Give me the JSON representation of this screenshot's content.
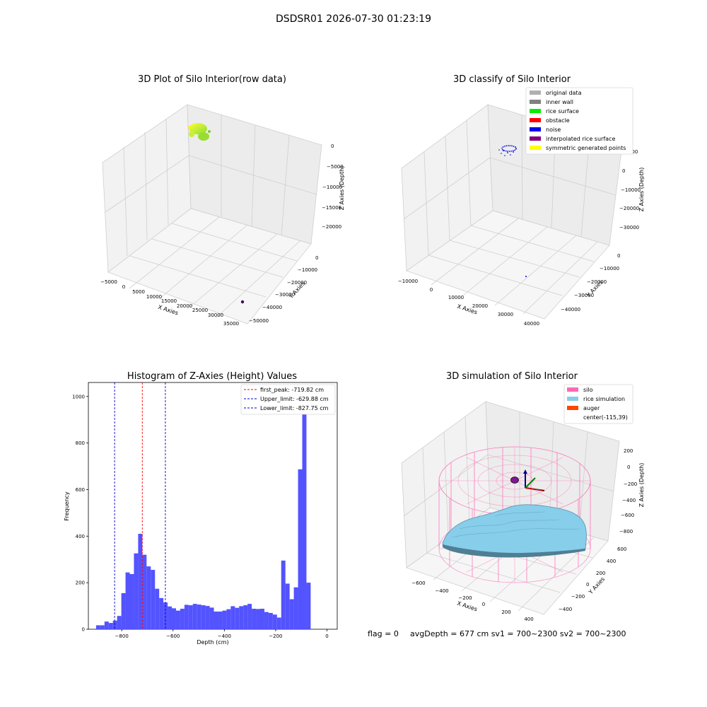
{
  "suptitle": "DSDSR01 2026-07-30 01:23:19",
  "panel_raw": {
    "title": "3D Plot of Silo Interior(row data)",
    "xlabel": "X Axies",
    "ylabel": "Y Axies",
    "zlabel": "Z Axies (Depth)",
    "x_ticks": [
      "−5000",
      "0",
      "5000",
      "10000",
      "15000",
      "20000",
      "25000",
      "30000",
      "35000"
    ],
    "y_ticks": [
      "0",
      "−10000",
      "−20000",
      "−30000",
      "−40000",
      "−50000"
    ],
    "z_ticks": [
      "0",
      "−5000",
      "−10000",
      "−15000",
      "−20000"
    ]
  },
  "panel_classify": {
    "title": "3D classify of Silo Interior",
    "xlabel": "X Axies",
    "ylabel": "Y Axies",
    "zlabel": "Z Axies (Depth)",
    "x_ticks": [
      "−10000",
      "0",
      "10000",
      "20000",
      "30000",
      "40000"
    ],
    "y_ticks": [
      "0",
      "−10000",
      "−20000",
      "−30000",
      "−40000"
    ],
    "z_ticks": [
      "10000",
      "0",
      "−10000",
      "−20000",
      "−30000"
    ],
    "legend": [
      {
        "label": "original data",
        "color": "#b0b0b0"
      },
      {
        "label": "inner wall",
        "color": "#808080"
      },
      {
        "label": "rice surface",
        "color": "#00ee00"
      },
      {
        "label": "obstacle",
        "color": "#ff0000"
      },
      {
        "label": "noise",
        "color": "#0000ee"
      },
      {
        "label": "interpolated rice surface",
        "color": "#800080"
      },
      {
        "label": "symmetric generated points",
        "color": "#ffff00"
      }
    ]
  },
  "panel_sim": {
    "title": "3D simulation of Silo Interior",
    "xlabel": "X Axies",
    "ylabel": "Y Axies",
    "zlabel": "Z Axies (Depth)",
    "x_ticks": [
      "−600",
      "−400",
      "−200",
      "0",
      "200",
      "400"
    ],
    "y_ticks": [
      "600",
      "400",
      "200",
      "0",
      "−200",
      "−400"
    ],
    "z_ticks": [
      "200",
      "0",
      "−200",
      "−400",
      "−600",
      "−800"
    ],
    "legend": [
      {
        "label": "silo",
        "color": "#ff69b4"
      },
      {
        "label": "rice simulation",
        "color": "#87ceeb"
      },
      {
        "label": "auger",
        "color": "#ff4500"
      },
      {
        "label": "center(-115,39)",
        "color": "none"
      }
    ]
  },
  "chart_data": {
    "type": "bar",
    "title": "Histogram of Z-Axies (Height) Values",
    "xlabel": "Depth (cm)",
    "ylabel": "Frequency",
    "xlim": [
      -930,
      40
    ],
    "ylim": [
      0,
      1060
    ],
    "x_ticks": [
      -800,
      -600,
      -400,
      -200,
      0
    ],
    "x_tick_labels": [
      "−800",
      "−600",
      "−400",
      "−200",
      "0"
    ],
    "y_ticks": [
      0,
      200,
      400,
      600,
      800,
      1000
    ],
    "y_tick_labels": [
      "0",
      "200",
      "400",
      "600",
      "800",
      "1000"
    ],
    "bar_color": "#4a4aff",
    "bin_start": -900,
    "bin_width": 16.4,
    "values": [
      17,
      17,
      33,
      27,
      37,
      57,
      155,
      244,
      237,
      326,
      410,
      320,
      270,
      255,
      174,
      134,
      115,
      98,
      90,
      80,
      88,
      105,
      103,
      109,
      106,
      103,
      100,
      93,
      76,
      76,
      80,
      86,
      99,
      92,
      99,
      103,
      109,
      88,
      87,
      88,
      74,
      70,
      63,
      50,
      295,
      196,
      129,
      180,
      687,
      1000,
      200
    ],
    "lines": [
      {
        "label": "first_peak: -719.82 cm",
        "x": -719.82,
        "color": "#ff0000"
      },
      {
        "label": "Upper_limit: -629.88 cm",
        "x": -629.88,
        "color": "#0000cc"
      },
      {
        "label": "Lower_limit: -827.75 cm",
        "x": -827.75,
        "color": "#0000cc"
      }
    ],
    "legend_position": "top-right"
  },
  "footer": {
    "flag": "flag = 0",
    "avg": "avgDepth = 677 cm  sv1 = 700~2300  sv2 = 700~2300"
  }
}
